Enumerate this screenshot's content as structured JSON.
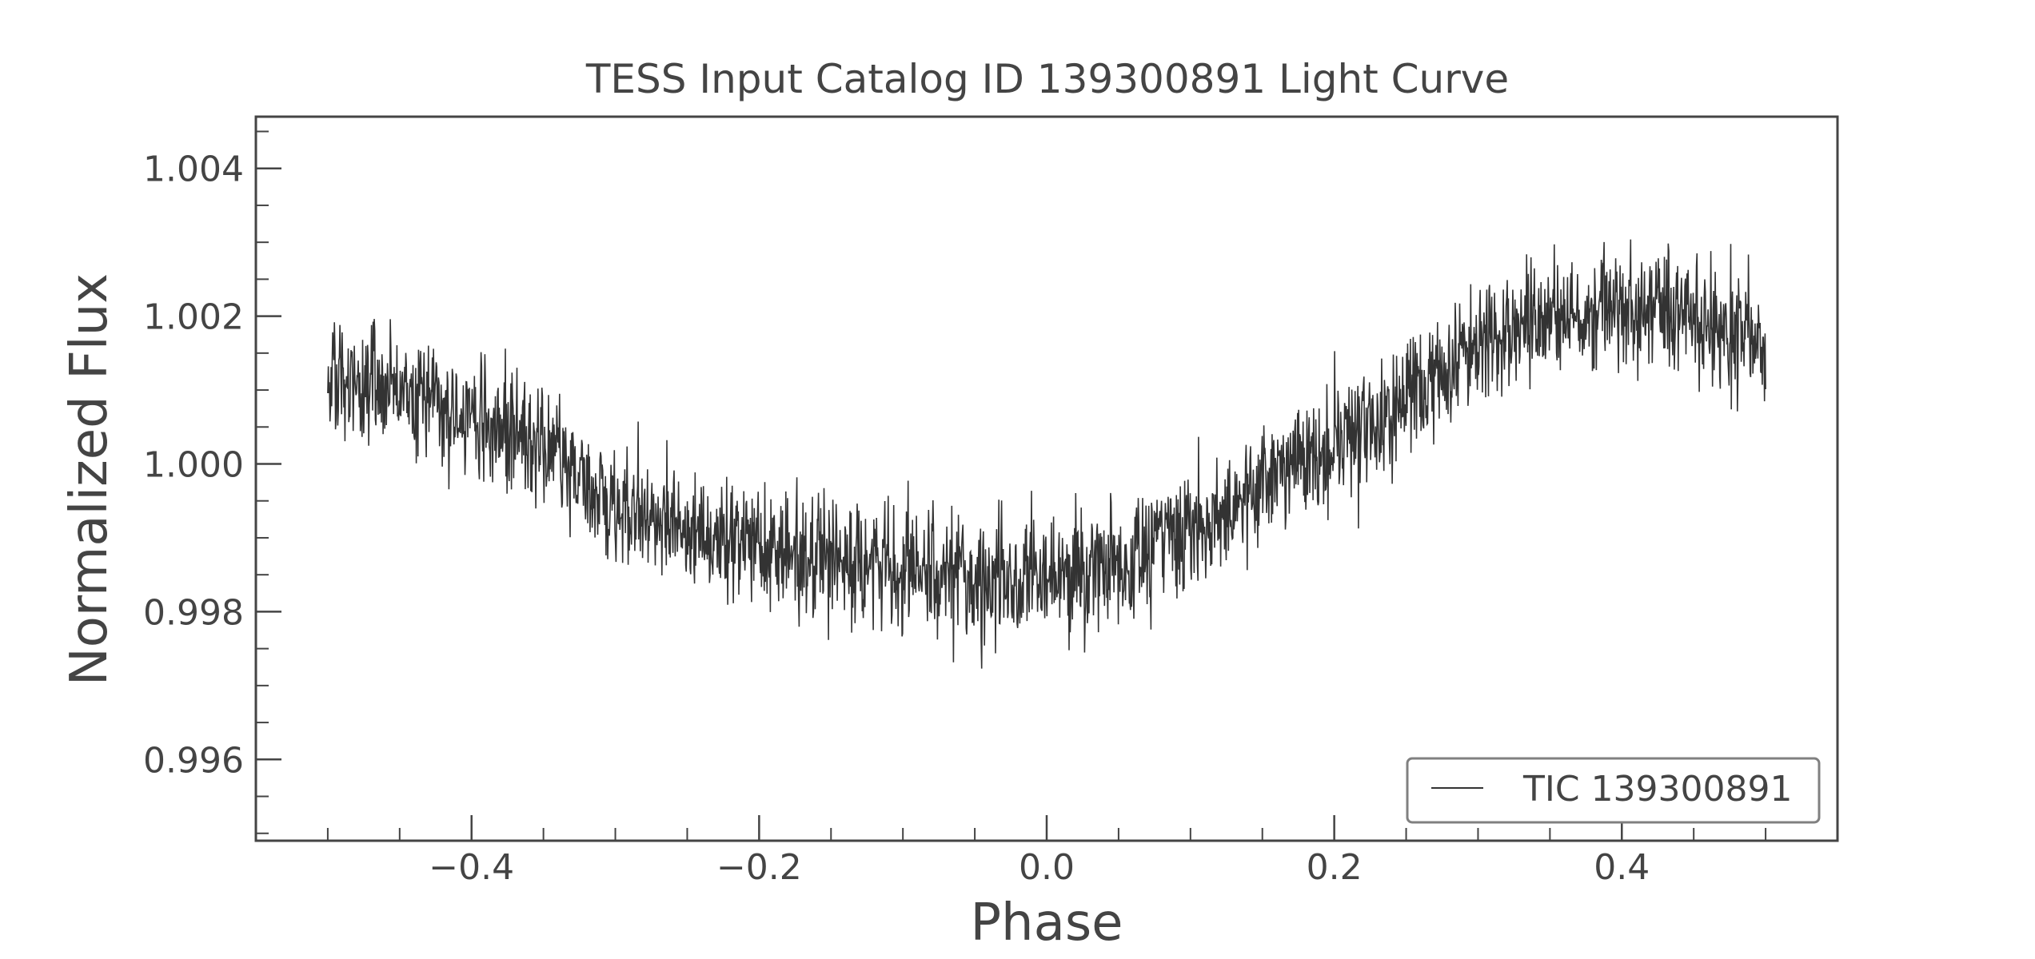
{
  "chart_data": {
    "type": "line",
    "title": "TESS Input Catalog ID 139300891 Light Curve",
    "xlabel": "Phase",
    "ylabel": "Normalized Flux",
    "xlim": [
      -0.55,
      0.55
    ],
    "ylim": [
      0.9949,
      1.0047
    ],
    "xticks": [
      -0.4,
      -0.2,
      0.0,
      0.2,
      0.4
    ],
    "xtick_labels": [
      "−0.4",
      "−0.2",
      "0.0",
      "0.2",
      "0.4"
    ],
    "yticks": [
      0.996,
      0.998,
      1.0,
      1.002,
      1.004
    ],
    "ytick_labels": [
      "0.996",
      "0.998",
      "1.000",
      "1.002",
      "1.004"
    ],
    "grid": false,
    "legend": {
      "position": "bottom-right",
      "entries": [
        "TIC 139300891"
      ]
    },
    "series": [
      {
        "name": "TIC 139300891",
        "color": "#333333",
        "x": [
          -0.5,
          -0.45,
          -0.4,
          -0.35,
          -0.3,
          -0.25,
          -0.2,
          -0.15,
          -0.1,
          -0.05,
          0.0,
          0.05,
          0.1,
          0.15,
          0.2,
          0.25,
          0.3,
          0.35,
          0.4,
          0.45,
          0.5
        ],
        "y": [
          1.0012,
          1.001,
          1.0006,
          1.0002,
          0.9994,
          0.9991,
          0.9989,
          0.9987,
          0.9986,
          0.9984,
          0.9985,
          0.9986,
          0.9991,
          0.9997,
          1.0003,
          1.0009,
          1.0016,
          1.002,
          1.0021,
          1.002,
          1.0016
        ],
        "scatter_amplitude": 0.0011
      }
    ]
  },
  "colors": {
    "axis": "#444444",
    "line": "#333333",
    "legend_border": "#808080"
  }
}
